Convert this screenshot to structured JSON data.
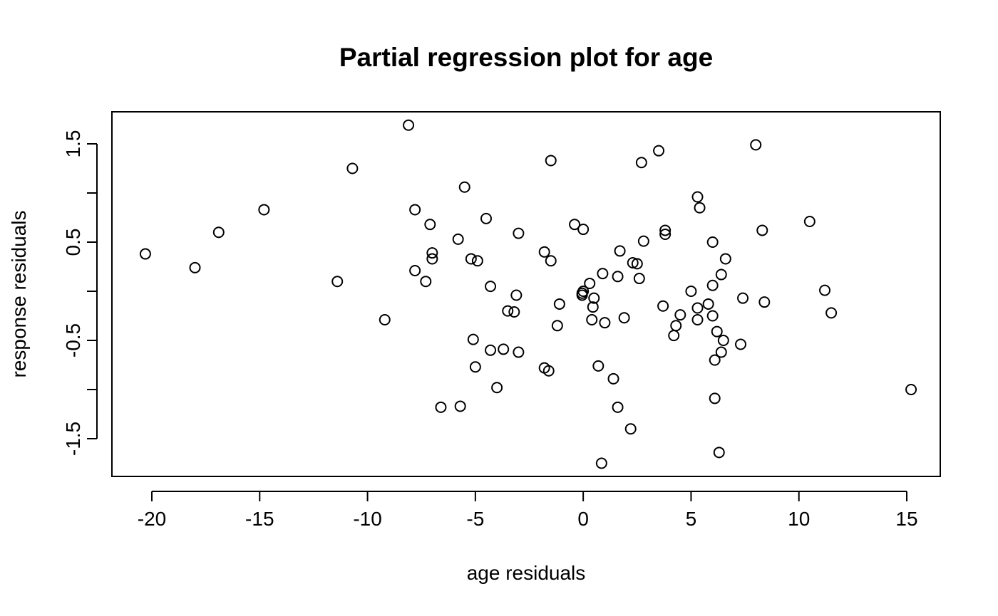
{
  "chart_data": {
    "type": "scatter",
    "title": "Partial regression plot for age",
    "xlabel": "age residuals",
    "ylabel": "response residuals",
    "xlim": [
      -21.5,
      16.5
    ],
    "ylim": [
      -1.92,
      1.8
    ],
    "xticks": [
      -20,
      -15,
      -10,
      -5,
      0,
      5,
      10,
      15
    ],
    "xtick_labels": [
      "-20",
      "-15",
      "-10",
      "-5",
      "0",
      "5",
      "10",
      "15"
    ],
    "yticks": [
      -1.5,
      -1.0,
      -0.5,
      0.0,
      0.5,
      1.0,
      1.5
    ],
    "ytick_labels": [
      "-1.5",
      "",
      "-0.5",
      "",
      "0.5",
      "",
      "1.5"
    ],
    "grid": false,
    "marker": "open-circle",
    "points": [
      [
        -20.3,
        0.38
      ],
      [
        -18.0,
        0.24
      ],
      [
        -16.9,
        0.6
      ],
      [
        -14.8,
        0.83
      ],
      [
        -11.4,
        0.1
      ],
      [
        -10.7,
        1.25
      ],
      [
        -9.2,
        -0.29
      ],
      [
        -8.1,
        1.69
      ],
      [
        -7.8,
        0.83
      ],
      [
        -7.8,
        0.21
      ],
      [
        -7.3,
        0.1
      ],
      [
        -7.1,
        0.68
      ],
      [
        -7.0,
        0.39
      ],
      [
        -7.0,
        0.33
      ],
      [
        -6.6,
        -1.18
      ],
      [
        -5.8,
        0.53
      ],
      [
        -5.7,
        -1.17
      ],
      [
        -5.5,
        1.06
      ],
      [
        -5.2,
        0.33
      ],
      [
        -5.1,
        -0.49
      ],
      [
        -5.0,
        -0.77
      ],
      [
        -4.9,
        0.31
      ],
      [
        -4.5,
        0.74
      ],
      [
        -4.3,
        0.05
      ],
      [
        -4.3,
        -0.6
      ],
      [
        -4.0,
        -0.98
      ],
      [
        -3.7,
        -0.59
      ],
      [
        -3.5,
        -0.2
      ],
      [
        -3.2,
        -0.21
      ],
      [
        -3.1,
        -0.04
      ],
      [
        -3.0,
        0.59
      ],
      [
        -3.0,
        -0.62
      ],
      [
        -1.8,
        -0.78
      ],
      [
        -1.8,
        0.4
      ],
      [
        -1.6,
        -0.81
      ],
      [
        -1.5,
        1.33
      ],
      [
        -1.5,
        0.31
      ],
      [
        -1.2,
        -0.35
      ],
      [
        -1.1,
        -0.13
      ],
      [
        -0.4,
        0.68
      ],
      [
        -0.05,
        -0.02
      ],
      [
        -0.05,
        -0.04
      ],
      [
        0.0,
        0.63
      ],
      [
        0.0,
        0.0
      ],
      [
        0.3,
        0.08
      ],
      [
        0.4,
        -0.29
      ],
      [
        0.45,
        -0.16
      ],
      [
        0.5,
        -0.07
      ],
      [
        0.7,
        -0.76
      ],
      [
        0.9,
        0.18
      ],
      [
        1.0,
        -0.32
      ],
      [
        1.4,
        -0.89
      ],
      [
        1.6,
        -1.18
      ],
      [
        1.7,
        0.41
      ],
      [
        1.6,
        0.15
      ],
      [
        1.9,
        -0.27
      ],
      [
        2.2,
        -1.4
      ],
      [
        2.3,
        0.29
      ],
      [
        2.5,
        0.28
      ],
      [
        2.7,
        1.31
      ],
      [
        2.6,
        0.13
      ],
      [
        2.8,
        0.51
      ],
      [
        3.5,
        1.43
      ],
      [
        3.7,
        -0.15
      ],
      [
        3.8,
        0.58
      ],
      [
        3.8,
        0.62
      ],
      [
        4.2,
        -0.45
      ],
      [
        4.3,
        -0.35
      ],
      [
        4.5,
        -0.24
      ],
      [
        5.0,
        0.0
      ],
      [
        5.3,
        0.96
      ],
      [
        5.3,
        -0.17
      ],
      [
        5.3,
        -0.29
      ],
      [
        5.4,
        0.85
      ],
      [
        5.8,
        -0.13
      ],
      [
        6.0,
        -0.25
      ],
      [
        6.0,
        0.5
      ],
      [
        6.0,
        0.06
      ],
      [
        6.1,
        -0.7
      ],
      [
        6.1,
        -1.09
      ],
      [
        6.2,
        -0.41
      ],
      [
        6.3,
        -1.64
      ],
      [
        6.4,
        -0.62
      ],
      [
        6.4,
        0.17
      ],
      [
        6.5,
        -0.5
      ],
      [
        6.6,
        0.33
      ],
      [
        7.3,
        -0.54
      ],
      [
        7.4,
        -0.07
      ],
      [
        8.0,
        1.49
      ],
      [
        8.3,
        0.62
      ],
      [
        8.4,
        -0.11
      ],
      [
        0.85,
        -1.75
      ],
      [
        10.5,
        0.71
      ],
      [
        11.2,
        0.01
      ],
      [
        11.5,
        -0.22
      ],
      [
        15.2,
        -1.0
      ]
    ]
  }
}
